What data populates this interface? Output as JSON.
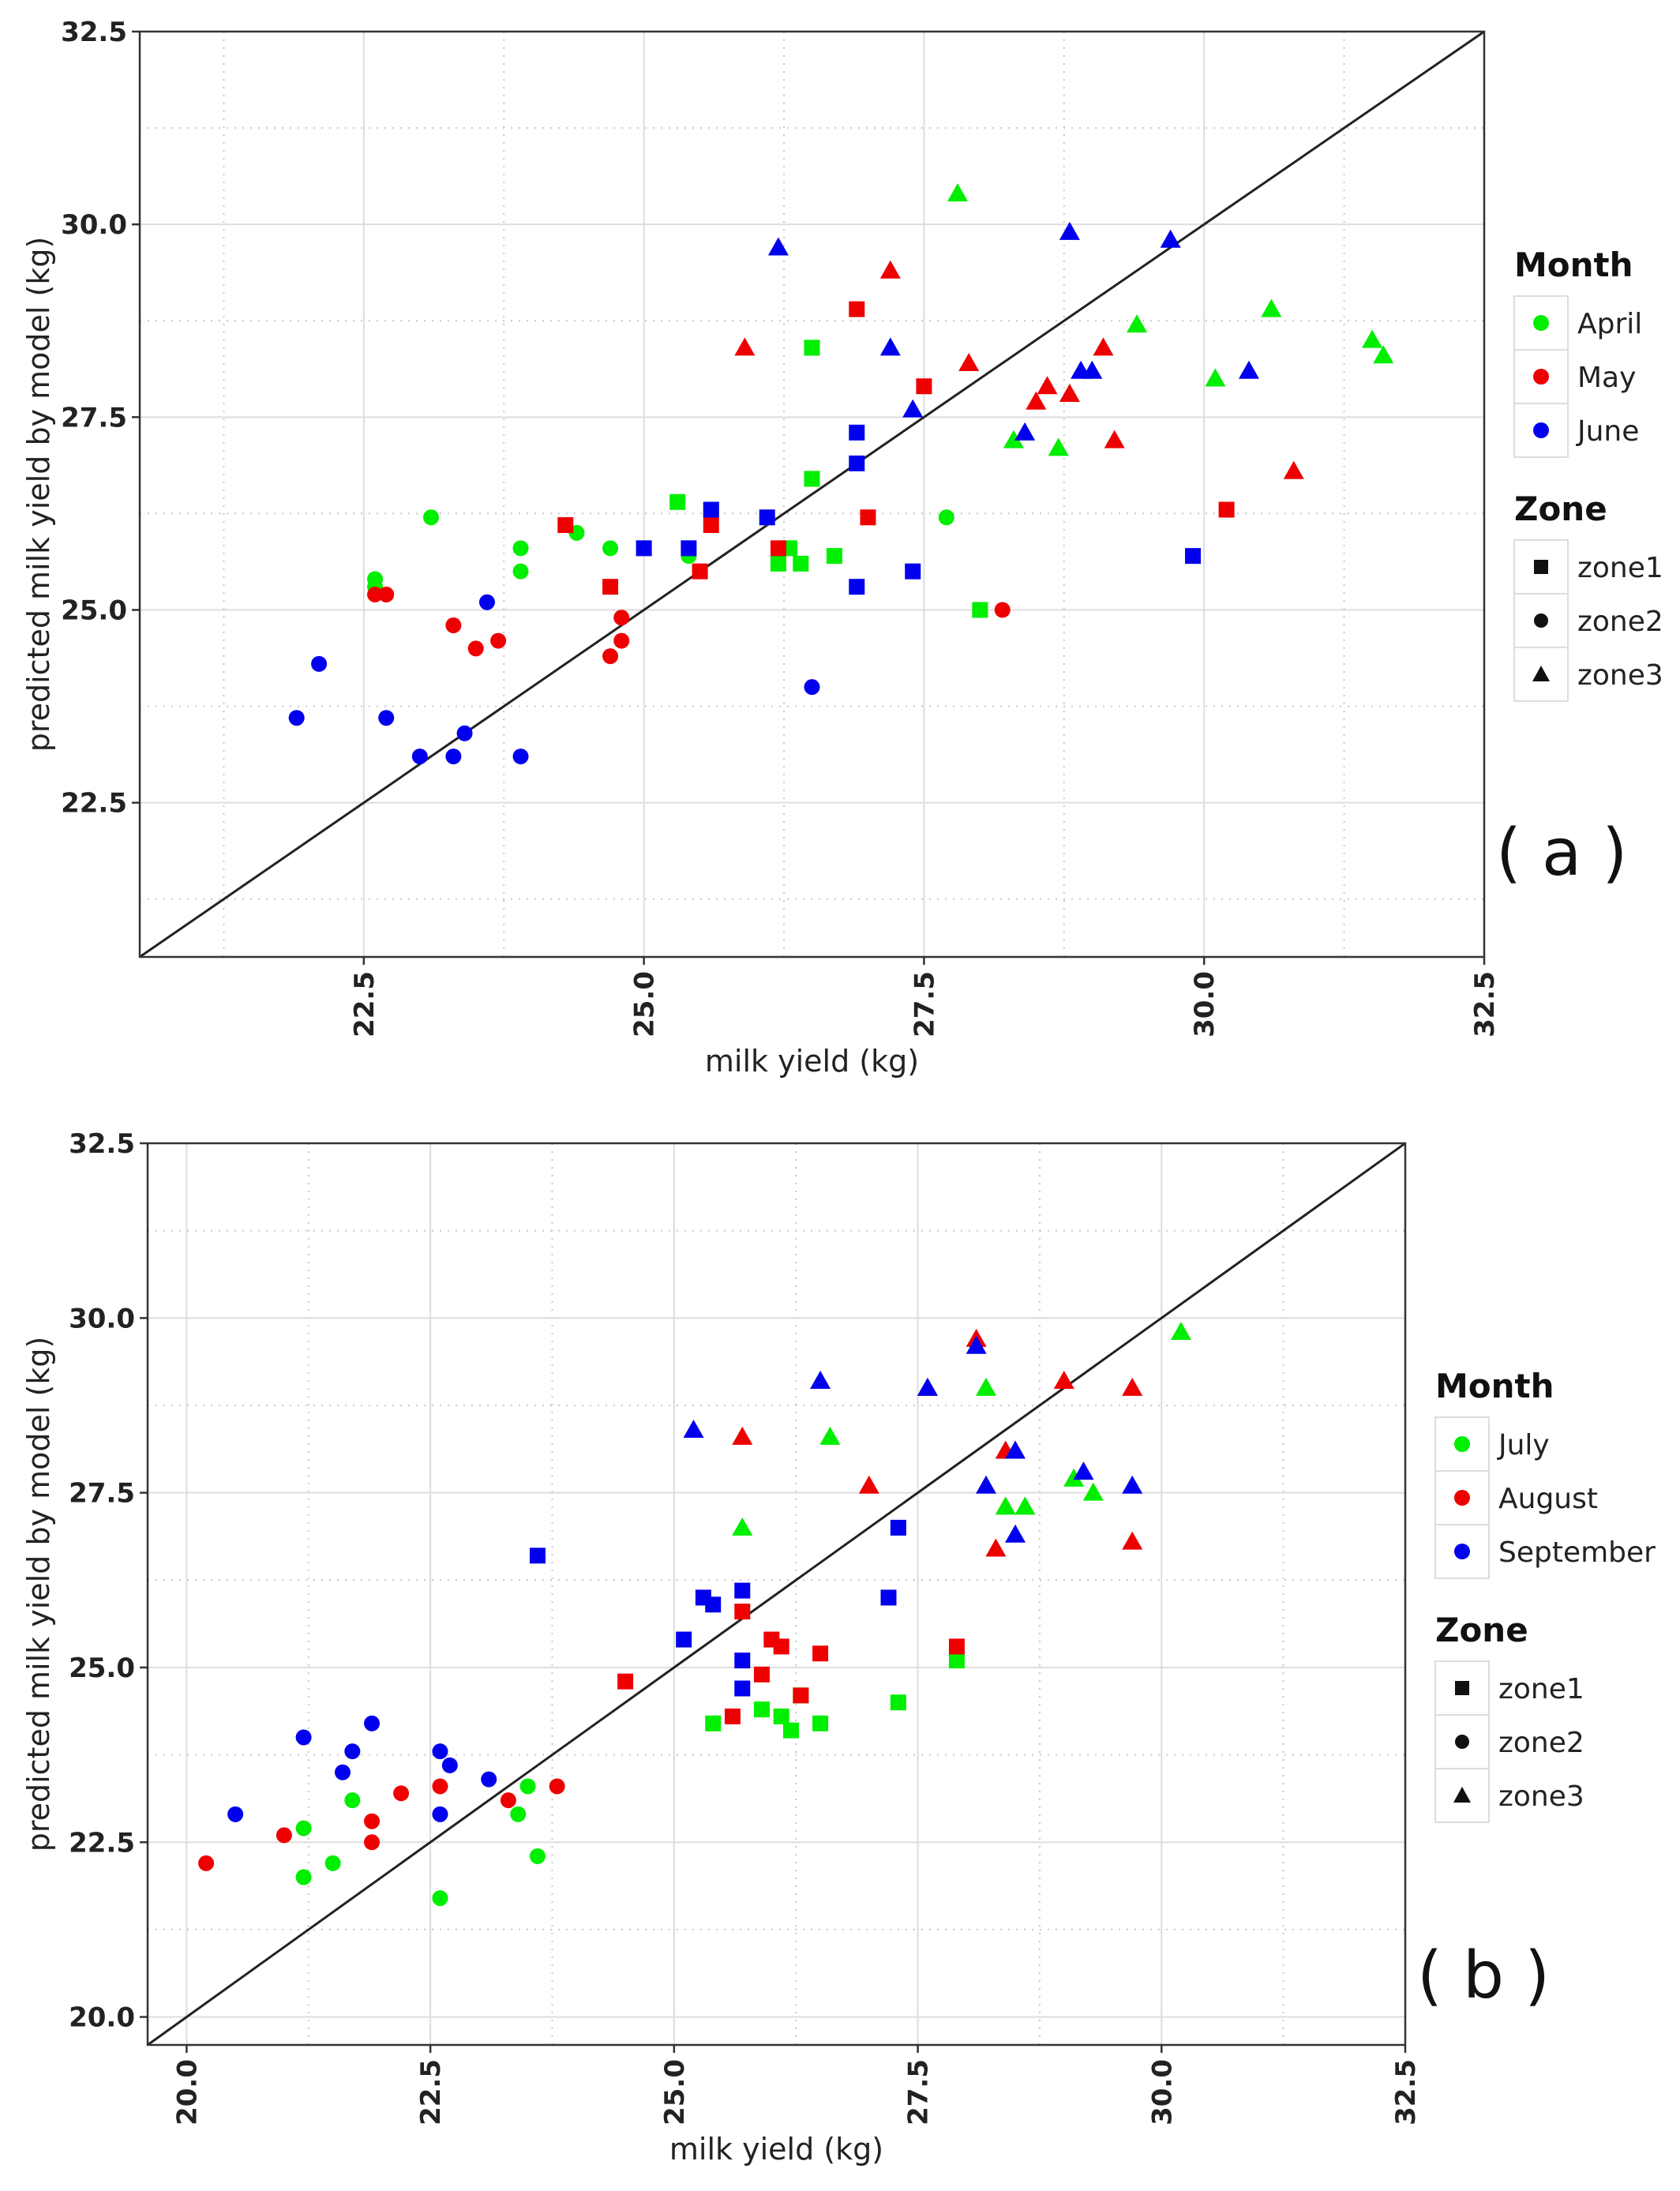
{
  "colors": {
    "green": "#00ee00",
    "red": "#ee0000",
    "blue": "#0000ee"
  },
  "chart_data": [
    {
      "type": "scatter",
      "panel": "( a )",
      "xlabel": "milk yield (kg)",
      "ylabel": "predicted milk yield by model (kg)",
      "xlim": [
        20.5,
        32.5
      ],
      "ylim": [
        20.5,
        32.5
      ],
      "xticks": [
        "22.5",
        "25.0",
        "27.5",
        "30.0",
        "32.5"
      ],
      "yticks": [
        "22.5",
        "25.0",
        "27.5",
        "30.0",
        "32.5"
      ],
      "reference_line": "y = x",
      "legend": {
        "month_title": "Month",
        "months": [
          {
            "label": "April",
            "color": "#00ee00"
          },
          {
            "label": "May",
            "color": "#ee0000"
          },
          {
            "label": "June",
            "color": "#0000ee"
          }
        ],
        "zone_title": "Zone",
        "zones": [
          {
            "label": "zone1",
            "shape": "square"
          },
          {
            "label": "zone2",
            "shape": "circle"
          },
          {
            "label": "zone3",
            "shape": "triangle"
          }
        ]
      },
      "series": [
        {
          "month": "April",
          "zone": "zone1",
          "x": [
            25.3,
            25.6,
            26.2,
            26.3,
            26.4,
            26.5,
            26.5,
            26.7,
            28.0
          ],
          "y": [
            26.4,
            26.3,
            25.6,
            25.8,
            25.6,
            26.7,
            28.4,
            25.7,
            25.0
          ]
        },
        {
          "month": "April",
          "zone": "zone2",
          "x": [
            22.6,
            22.6,
            23.1,
            23.9,
            23.9,
            24.4,
            24.7,
            25.4,
            27.7
          ],
          "y": [
            25.3,
            25.4,
            26.2,
            25.8,
            25.5,
            26.0,
            25.8,
            25.7,
            26.2
          ]
        },
        {
          "month": "April",
          "zone": "zone3",
          "x": [
            27.8,
            28.3,
            28.7,
            28.8,
            29.4,
            30.1,
            30.6,
            31.5,
            31.6
          ],
          "y": [
            30.4,
            27.2,
            27.1,
            27.8,
            28.7,
            28.0,
            28.9,
            28.5,
            28.3
          ]
        },
        {
          "month": "May",
          "zone": "zone1",
          "x": [
            24.3,
            24.7,
            25.5,
            25.6,
            26.2,
            26.9,
            27.0,
            27.5,
            30.2
          ],
          "y": [
            26.1,
            25.3,
            25.5,
            26.1,
            25.8,
            28.9,
            26.2,
            27.9,
            26.3
          ]
        },
        {
          "month": "May",
          "zone": "zone2",
          "x": [
            22.6,
            22.7,
            23.3,
            23.5,
            23.7,
            24.7,
            24.8,
            24.8,
            28.2
          ],
          "y": [
            25.2,
            25.2,
            24.8,
            24.5,
            24.6,
            24.4,
            24.9,
            24.6,
            25.0
          ]
        },
        {
          "month": "May",
          "zone": "zone3",
          "x": [
            25.9,
            27.2,
            27.9,
            28.5,
            28.6,
            28.8,
            29.1,
            29.2,
            30.8
          ],
          "y": [
            28.4,
            29.4,
            28.2,
            27.7,
            27.9,
            27.8,
            28.4,
            27.2,
            26.8
          ]
        },
        {
          "month": "June",
          "zone": "zone1",
          "x": [
            25.0,
            25.4,
            25.6,
            26.1,
            26.9,
            26.9,
            26.9,
            27.4,
            29.9
          ],
          "y": [
            25.8,
            25.8,
            26.3,
            26.2,
            25.3,
            27.3,
            26.9,
            25.5,
            25.7
          ]
        },
        {
          "month": "June",
          "zone": "zone2",
          "x": [
            21.9,
            22.1,
            22.7,
            23.0,
            23.3,
            23.4,
            23.6,
            23.9,
            26.5
          ],
          "y": [
            23.6,
            24.3,
            23.6,
            23.1,
            23.1,
            23.4,
            25.1,
            23.1,
            24.0
          ]
        },
        {
          "month": "June",
          "zone": "zone3",
          "x": [
            26.2,
            27.2,
            27.4,
            28.4,
            28.8,
            28.9,
            29.0,
            29.7,
            30.4
          ],
          "y": [
            29.7,
            28.4,
            27.6,
            27.3,
            29.9,
            28.1,
            28.1,
            29.8,
            28.1
          ]
        }
      ]
    },
    {
      "type": "scatter",
      "panel": "( b )",
      "xlabel": "milk yield (kg)",
      "ylabel": "predicted milk yield by model (kg)",
      "xlim": [
        19.6,
        32.5
      ],
      "ylim": [
        19.6,
        32.5
      ],
      "xticks": [
        "20.0",
        "22.5",
        "25.0",
        "27.5",
        "30.0",
        "32.5"
      ],
      "yticks": [
        "20.0",
        "22.5",
        "25.0",
        "27.5",
        "30.0",
        "32.5"
      ],
      "reference_line": "y = x",
      "legend": {
        "month_title": "Month",
        "months": [
          {
            "label": "July",
            "color": "#00ee00"
          },
          {
            "label": "August",
            "color": "#ee0000"
          },
          {
            "label": "September",
            "color": "#0000ee"
          }
        ],
        "zone_title": "Zone",
        "zones": [
          {
            "label": "zone1",
            "shape": "square"
          },
          {
            "label": "zone2",
            "shape": "circle"
          },
          {
            "label": "zone3",
            "shape": "triangle"
          }
        ]
      },
      "series": [
        {
          "month": "July",
          "zone": "zone1",
          "x": [
            25.4,
            25.9,
            26.1,
            26.2,
            26.3,
            26.5,
            27.3,
            27.9
          ],
          "y": [
            24.2,
            24.4,
            24.3,
            24.1,
            24.6,
            24.2,
            24.5,
            25.1
          ]
        },
        {
          "month": "July",
          "zone": "zone2",
          "x": [
            21.2,
            21.2,
            21.5,
            21.7,
            22.6,
            23.4,
            23.5,
            23.6
          ],
          "y": [
            22.7,
            22.0,
            22.2,
            23.1,
            21.7,
            22.9,
            23.3,
            22.3
          ]
        },
        {
          "month": "July",
          "zone": "zone3",
          "x": [
            25.7,
            26.6,
            28.2,
            28.4,
            28.6,
            29.1,
            29.3,
            30.2
          ],
          "y": [
            27.0,
            28.3,
            29.0,
            27.3,
            27.3,
            27.7,
            27.5,
            29.8
          ]
        },
        {
          "month": "August",
          "zone": "zone1",
          "x": [
            24.5,
            25.6,
            25.7,
            25.9,
            26.0,
            26.1,
            26.3,
            26.5,
            27.9
          ],
          "y": [
            24.8,
            24.3,
            25.8,
            24.9,
            25.4,
            25.3,
            24.6,
            25.2,
            25.3
          ]
        },
        {
          "month": "August",
          "zone": "zone2",
          "x": [
            20.2,
            21.0,
            21.9,
            21.9,
            22.2,
            22.6,
            23.3,
            23.8
          ],
          "y": [
            22.2,
            22.6,
            22.8,
            22.5,
            23.2,
            23.3,
            23.1,
            23.3
          ]
        },
        {
          "month": "August",
          "zone": "zone3",
          "x": [
            25.7,
            27.0,
            27.6,
            28.1,
            28.3,
            28.4,
            29.0,
            29.7,
            29.7
          ],
          "y": [
            28.3,
            27.6,
            29.0,
            29.7,
            26.7,
            28.1,
            29.1,
            29.0,
            26.8
          ]
        },
        {
          "month": "September",
          "zone": "zone1",
          "x": [
            23.6,
            25.1,
            25.3,
            25.4,
            25.7,
            25.7,
            25.7,
            27.2,
            27.3
          ],
          "y": [
            26.6,
            25.4,
            26.0,
            25.9,
            26.1,
            25.1,
            24.7,
            26.0,
            27.0
          ]
        },
        {
          "month": "September",
          "zone": "zone2",
          "x": [
            20.5,
            21.2,
            21.6,
            21.7,
            21.9,
            22.6,
            22.6,
            22.7,
            23.1
          ],
          "y": [
            22.9,
            24.0,
            23.5,
            23.8,
            24.2,
            23.8,
            22.9,
            23.6,
            23.4
          ]
        },
        {
          "month": "September",
          "zone": "zone3",
          "x": [
            25.2,
            26.5,
            27.6,
            28.1,
            28.2,
            28.5,
            28.5,
            29.2,
            29.7
          ],
          "y": [
            28.4,
            29.1,
            29.0,
            29.6,
            27.6,
            28.1,
            26.9,
            27.8,
            27.6
          ]
        }
      ]
    }
  ]
}
